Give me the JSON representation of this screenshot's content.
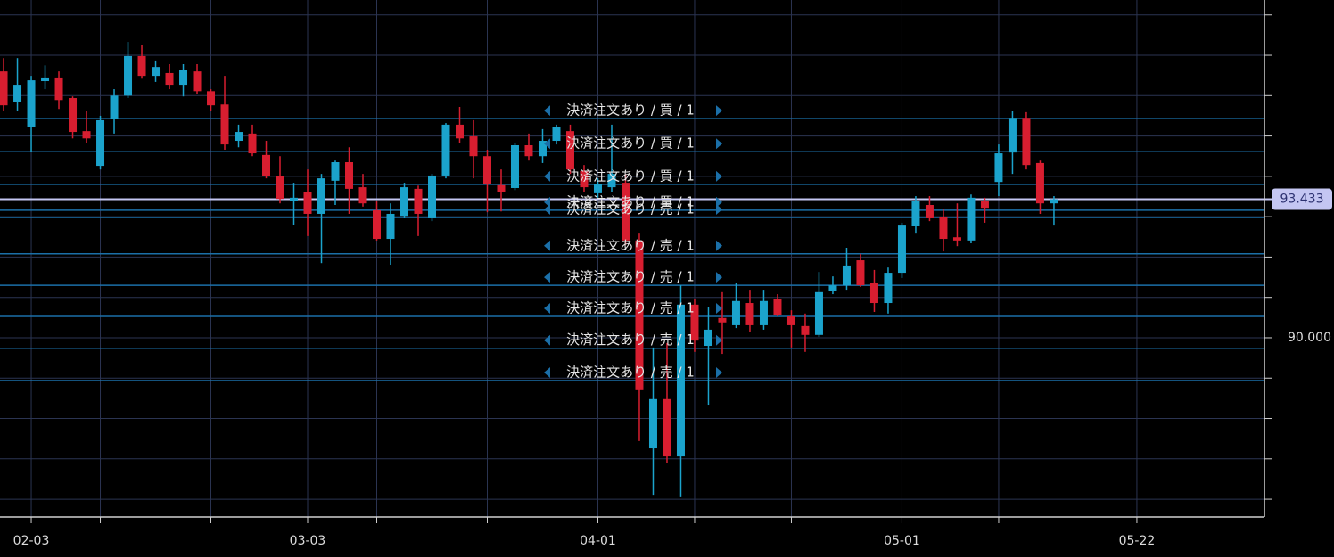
{
  "chart_data": {
    "type": "candlestick",
    "x": [
      0,
      1,
      2,
      3,
      4,
      5,
      6,
      7,
      8,
      9,
      10,
      11,
      12,
      13,
      14,
      15,
      16,
      17,
      18,
      19,
      20,
      21,
      22,
      23,
      24,
      25,
      26,
      27,
      28,
      29,
      30,
      31,
      32,
      33,
      34,
      35,
      36,
      37,
      38,
      39,
      40,
      41,
      42,
      43,
      44,
      45,
      46,
      47,
      48,
      49,
      50,
      51,
      52,
      53,
      54,
      55,
      56,
      57,
      58,
      59,
      60,
      61,
      62,
      63,
      64,
      65,
      66,
      67,
      68,
      69,
      70,
      71,
      72,
      73,
      74,
      75,
      76
    ],
    "open": [
      96.6,
      95.83,
      95.23,
      96.36,
      96.45,
      95.94,
      95.12,
      94.26,
      95.43,
      96.0,
      96.98,
      96.49,
      96.56,
      96.27,
      96.6,
      96.11,
      95.78,
      94.88,
      95.06,
      94.53,
      94.0,
      93.4,
      93.6,
      93.07,
      93.89,
      94.35,
      93.73,
      93.16,
      92.45,
      93.02,
      93.69,
      92.96,
      94.02,
      95.28,
      94.99,
      94.5,
      93.78,
      93.71,
      94.77,
      94.5,
      94.88,
      95.12,
      94.13,
      93.58,
      93.73,
      93.84,
      92.41,
      87.26,
      88.48,
      87.06,
      90.82,
      89.8,
      90.49,
      90.31,
      90.86,
      90.31,
      90.97,
      90.53,
      90.29,
      90.07,
      91.15,
      91.3,
      91.92,
      91.35,
      90.86,
      91.61,
      92.76,
      93.29,
      93.0,
      92.49,
      92.41,
      93.38,
      93.86,
      94.59,
      95.45,
      94.33,
      93.33
    ],
    "high": [
      96.93,
      96.93,
      96.49,
      96.75,
      96.6,
      95.98,
      95.61,
      95.5,
      96.16,
      97.33,
      97.26,
      96.87,
      96.78,
      96.78,
      96.78,
      96.16,
      96.49,
      95.28,
      95.28,
      94.88,
      94.5,
      93.84,
      94.17,
      94.06,
      94.39,
      94.72,
      94.06,
      93.4,
      93.33,
      93.84,
      93.77,
      94.06,
      95.32,
      95.72,
      95.39,
      94.66,
      94.17,
      94.83,
      95.06,
      95.17,
      95.28,
      95.28,
      94.28,
      93.95,
      95.28,
      94.06,
      92.58,
      89.76,
      89.87,
      91.3,
      90.97,
      90.75,
      91.13,
      91.35,
      91.19,
      91.19,
      91.08,
      90.68,
      90.6,
      91.63,
      91.52,
      92.23,
      92.08,
      91.68,
      91.74,
      92.85,
      93.51,
      93.51,
      93.18,
      93.33,
      93.55,
      93.47,
      94.79,
      95.63,
      95.59,
      94.39,
      93.51
    ],
    "low": [
      95.61,
      95.61,
      94.61,
      96.16,
      95.67,
      94.94,
      94.83,
      94.17,
      95.06,
      95.94,
      96.42,
      96.34,
      96.16,
      95.98,
      96.05,
      95.61,
      94.66,
      94.72,
      94.5,
      93.95,
      93.33,
      92.8,
      92.52,
      91.85,
      93.29,
      93.07,
      93.25,
      92.41,
      91.81,
      92.96,
      92.52,
      92.89,
      93.95,
      94.83,
      93.95,
      93.11,
      93.13,
      93.66,
      94.39,
      94.33,
      94.79,
      94.06,
      93.62,
      93.47,
      93.62,
      92.3,
      87.44,
      86.11,
      86.89,
      86.05,
      89.65,
      88.32,
      89.6,
      90.24,
      90.15,
      90.2,
      90.53,
      89.76,
      89.65,
      90.02,
      91.08,
      91.19,
      91.26,
      90.64,
      90.6,
      91.48,
      92.58,
      92.89,
      92.14,
      92.27,
      92.34,
      92.85,
      93.51,
      94.06,
      94.17,
      93.07,
      92.78
    ],
    "close": [
      95.76,
      96.27,
      96.38,
      96.45,
      95.89,
      95.1,
      94.94,
      95.39,
      96.0,
      96.98,
      96.49,
      96.71,
      96.27,
      96.64,
      96.11,
      95.76,
      94.79,
      95.1,
      94.57,
      94.0,
      93.44,
      93.47,
      93.07,
      93.95,
      94.35,
      93.69,
      93.33,
      92.45,
      93.07,
      93.73,
      93.07,
      94.02,
      95.28,
      94.94,
      94.5,
      93.8,
      93.62,
      94.77,
      94.5,
      94.88,
      95.23,
      94.17,
      93.73,
      93.8,
      94.06,
      92.41,
      88.7,
      88.48,
      87.06,
      90.82,
      89.93,
      90.2,
      90.38,
      90.91,
      90.31,
      90.91,
      90.57,
      90.31,
      90.07,
      91.13,
      91.3,
      91.79,
      91.3,
      90.86,
      91.61,
      92.78,
      93.38,
      92.96,
      92.45,
      92.41,
      93.47,
      93.22,
      94.57,
      95.45,
      94.28,
      93.33,
      93.433
    ],
    "up_color": "#1ba3cc",
    "down_color": "#d81e30",
    "xlim": [
      -0.26,
      91.23
    ],
    "xticks": [
      {
        "value": 2,
        "label": "02-03"
      },
      {
        "value": 22,
        "label": "03-03"
      },
      {
        "value": 43,
        "label": "04-01"
      },
      {
        "value": 65,
        "label": "05-01"
      },
      {
        "value": 82,
        "label": "05-22"
      }
    ],
    "xminor_ticks": [
      7,
      15,
      27,
      35,
      50,
      57,
      72
    ],
    "ylim": [
      85.56,
      98.37
    ],
    "yticks": [
      {
        "value": 90,
        "label": "90.000"
      }
    ],
    "yminor_ticks": [
      86,
      87,
      88,
      89,
      91,
      92,
      93,
      94,
      95,
      96,
      97,
      98
    ],
    "grid": true,
    "grid_color": "#2b3452",
    "current_price": 93.433,
    "current_price_color": "#c4c6f2",
    "order_color": "#1b6fa8",
    "orders": [
      {
        "price": 95.43,
        "label": "決済注文あり / 買 / 1"
      },
      {
        "price": 94.61,
        "label": "決済注文あり / 買 / 1"
      },
      {
        "price": 93.8,
        "label": "決済注文あり / 買 / 1"
      },
      {
        "price": 93.16,
        "label": "決済注文あり / 買 / 1"
      },
      {
        "price": 92.98,
        "label": "決済注文あり / 売 / 1"
      },
      {
        "price": 92.08,
        "label": "決済注文あり / 売 / 1"
      },
      {
        "price": 91.3,
        "label": "決済注文あり / 売 / 1"
      },
      {
        "price": 90.53,
        "label": "決済注文あり / 売 / 1"
      },
      {
        "price": 89.74,
        "label": "決済注文あり / 売 / 1"
      },
      {
        "price": 88.94,
        "label": "決済注文あり / 売 / 1"
      }
    ]
  }
}
